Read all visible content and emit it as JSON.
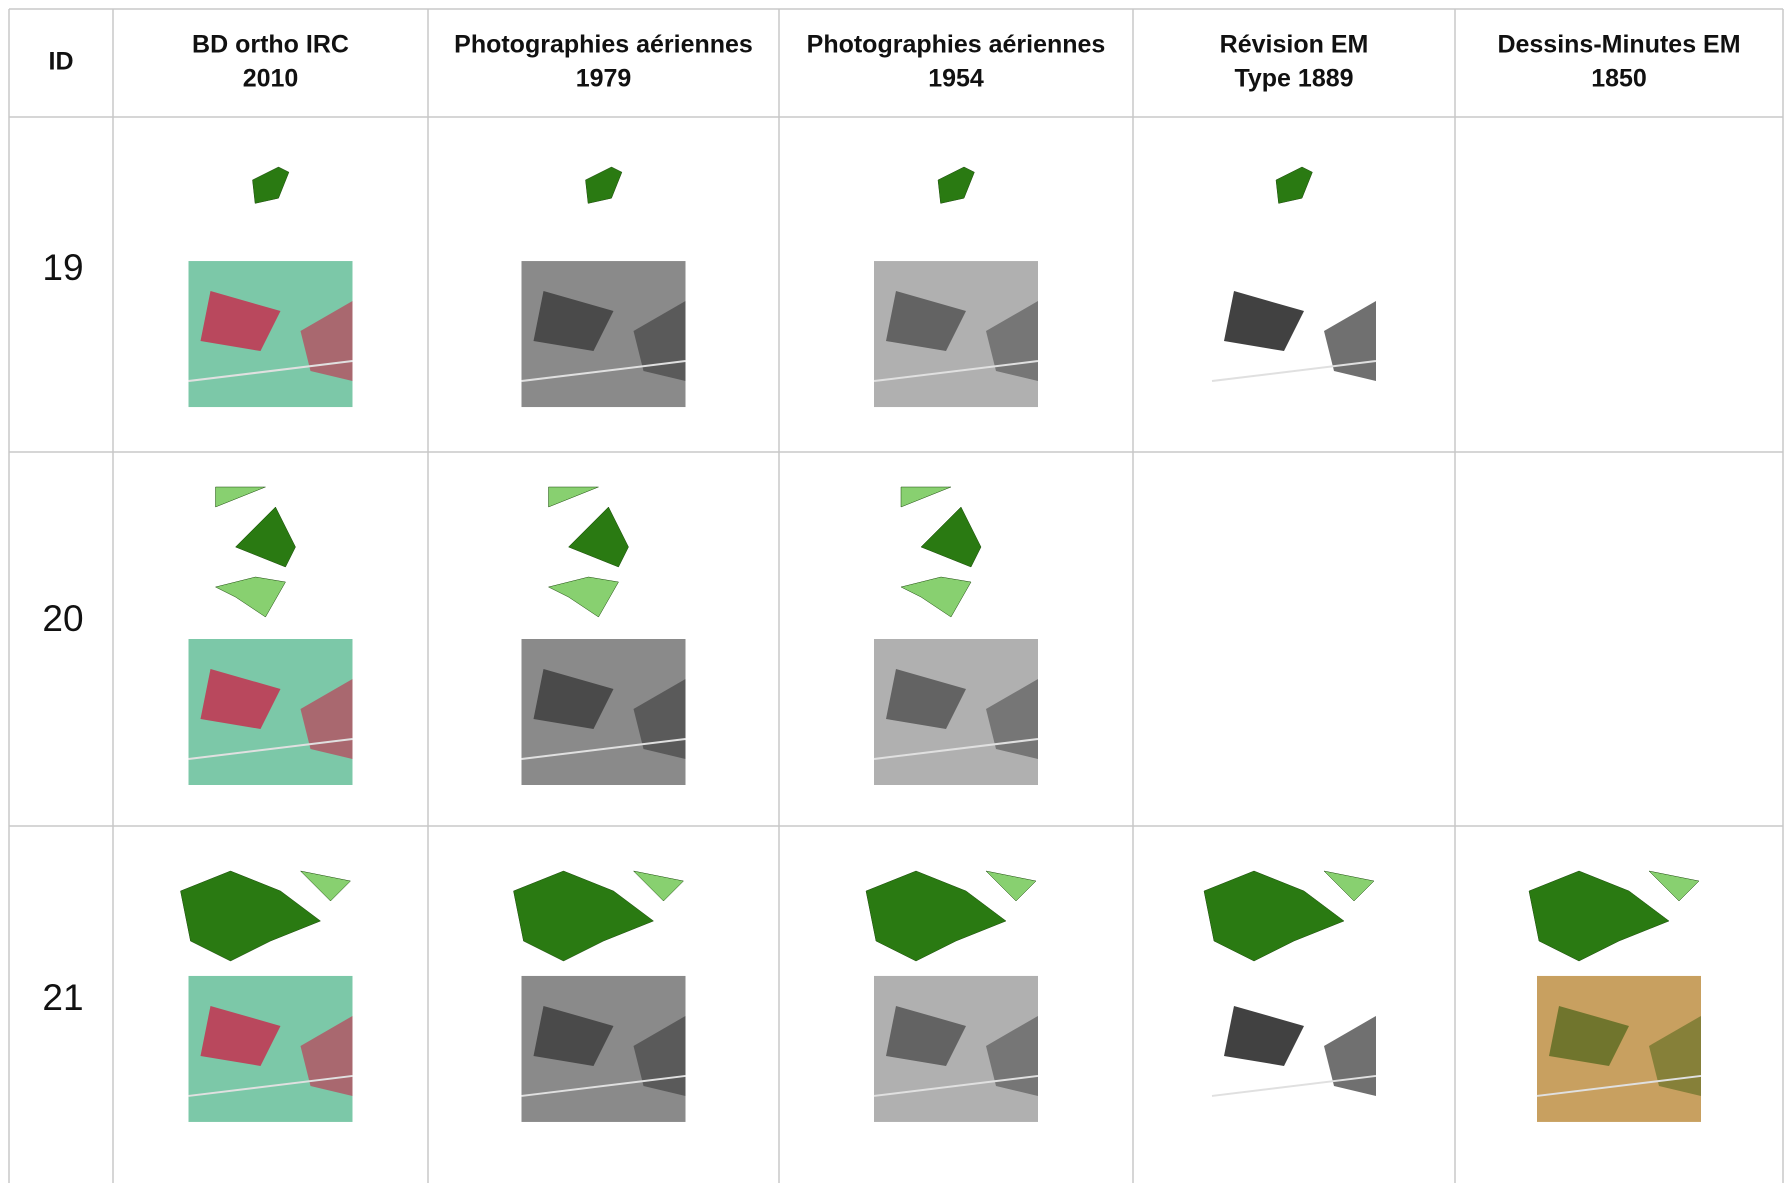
{
  "table": {
    "header": [
      [
        "ID"
      ],
      [
        "BD ortho IRC",
        "2010"
      ],
      [
        "Photographies aériennes",
        "1979"
      ],
      [
        "Photographies aériennes",
        "1954"
      ],
      [
        "Révision EM",
        "Type 1889"
      ],
      [
        "Dessins-Minutes EM",
        "1850"
      ]
    ],
    "rows": [
      [
        "19"
      ],
      [
        "20"
      ],
      [
        "21"
      ]
    ]
  }
}
